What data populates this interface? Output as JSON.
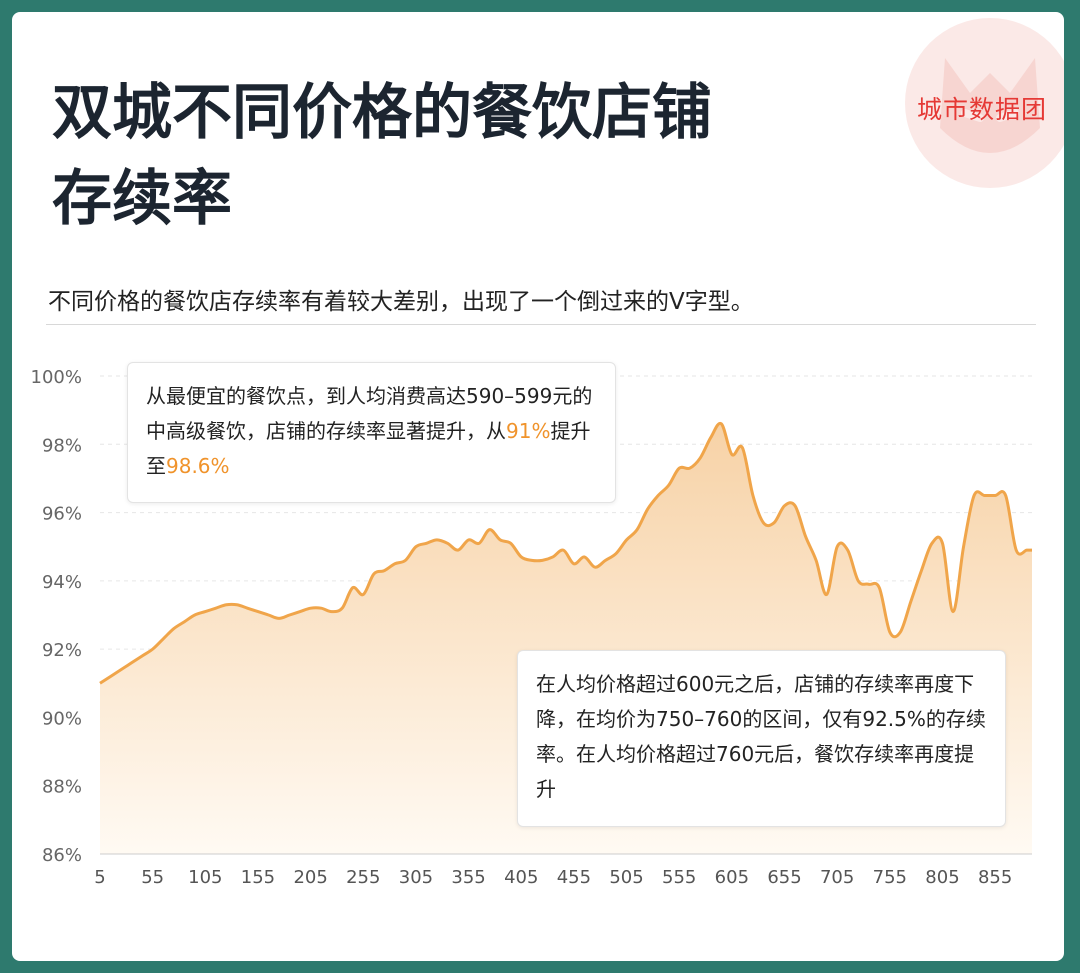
{
  "logo": {
    "text": "城市数据团",
    "icon": "cat-shield-icon"
  },
  "header": {
    "title_line1": "双城不同价格的餐饮店铺",
    "title_line2": "存续率",
    "subtitle": "不同价格的餐饮店存续率有着较大差别，出现了一个倒过来的V字型。"
  },
  "callouts": {
    "left": {
      "part1": "从最便宜的餐饮点，到人均消费高达590–599元的中高级餐饮，店铺的存续率显著提升，从",
      "hl1": "91%",
      "part2": "提升至",
      "hl2": "98.6%"
    },
    "right": {
      "text": "在人均价格超过600元之后，店铺的存续率再度下降，在均价为750–760的区间，仅有92.5%的存续率。在人均价格超过760元后，餐饮存续率再度提升"
    }
  },
  "colors": {
    "line": "#f0a54a",
    "fill_top": "#f7d2a6",
    "fill_bottom": "#fffaf3",
    "highlight": "#f0932b",
    "logo": "#e53935"
  },
  "chart_data": {
    "type": "area",
    "xlabel": "",
    "ylabel": "",
    "ylim": [
      86,
      100
    ],
    "xlim": [
      5,
      890
    ],
    "grid": true,
    "x_ticks": [
      5,
      55,
      105,
      155,
      205,
      255,
      305,
      355,
      405,
      455,
      505,
      555,
      605,
      655,
      705,
      755,
      805,
      855
    ],
    "y_ticks": [
      86,
      88,
      90,
      92,
      94,
      96,
      98,
      100
    ],
    "y_tick_labels": [
      "86%",
      "88%",
      "90%",
      "92%",
      "94%",
      "96%",
      "98%",
      "100%"
    ],
    "series": [
      {
        "values": [
          [
            5,
            91.0
          ],
          [
            15,
            91.2
          ],
          [
            25,
            91.4
          ],
          [
            35,
            91.6
          ],
          [
            45,
            91.8
          ],
          [
            55,
            92.0
          ],
          [
            65,
            92.3
          ],
          [
            75,
            92.6
          ],
          [
            85,
            92.8
          ],
          [
            95,
            93.0
          ],
          [
            105,
            93.1
          ],
          [
            115,
            93.2
          ],
          [
            125,
            93.3
          ],
          [
            135,
            93.3
          ],
          [
            145,
            93.2
          ],
          [
            155,
            93.1
          ],
          [
            165,
            93.0
          ],
          [
            175,
            92.9
          ],
          [
            185,
            93.0
          ],
          [
            195,
            93.1
          ],
          [
            205,
            93.2
          ],
          [
            215,
            93.2
          ],
          [
            225,
            93.1
          ],
          [
            235,
            93.2
          ],
          [
            245,
            93.8
          ],
          [
            255,
            93.6
          ],
          [
            265,
            94.2
          ],
          [
            275,
            94.3
          ],
          [
            285,
            94.5
          ],
          [
            295,
            94.6
          ],
          [
            305,
            95.0
          ],
          [
            315,
            95.1
          ],
          [
            325,
            95.2
          ],
          [
            335,
            95.1
          ],
          [
            345,
            94.9
          ],
          [
            355,
            95.2
          ],
          [
            365,
            95.1
          ],
          [
            375,
            95.5
          ],
          [
            385,
            95.2
          ],
          [
            395,
            95.1
          ],
          [
            405,
            94.7
          ],
          [
            415,
            94.6
          ],
          [
            425,
            94.6
          ],
          [
            435,
            94.7
          ],
          [
            445,
            94.9
          ],
          [
            455,
            94.5
          ],
          [
            465,
            94.7
          ],
          [
            475,
            94.4
          ],
          [
            485,
            94.6
          ],
          [
            495,
            94.8
          ],
          [
            505,
            95.2
          ],
          [
            515,
            95.5
          ],
          [
            525,
            96.1
          ],
          [
            535,
            96.5
          ],
          [
            545,
            96.8
          ],
          [
            555,
            97.3
          ],
          [
            565,
            97.3
          ],
          [
            575,
            97.6
          ],
          [
            585,
            98.2
          ],
          [
            595,
            98.6
          ],
          [
            605,
            97.7
          ],
          [
            615,
            97.9
          ],
          [
            625,
            96.5
          ],
          [
            635,
            95.7
          ],
          [
            645,
            95.7
          ],
          [
            655,
            96.2
          ],
          [
            665,
            96.2
          ],
          [
            675,
            95.3
          ],
          [
            685,
            94.6
          ],
          [
            695,
            93.6
          ],
          [
            705,
            95.0
          ],
          [
            715,
            94.9
          ],
          [
            725,
            94.0
          ],
          [
            735,
            93.9
          ],
          [
            745,
            93.8
          ],
          [
            755,
            92.5
          ],
          [
            765,
            92.5
          ],
          [
            775,
            93.4
          ],
          [
            785,
            94.3
          ],
          [
            795,
            95.1
          ],
          [
            805,
            95.1
          ],
          [
            815,
            93.1
          ],
          [
            825,
            95.0
          ],
          [
            835,
            96.5
          ],
          [
            845,
            96.5
          ],
          [
            855,
            96.5
          ],
          [
            865,
            96.5
          ],
          [
            875,
            94.9
          ],
          [
            885,
            94.9
          ],
          [
            890,
            94.9
          ]
        ]
      }
    ]
  }
}
